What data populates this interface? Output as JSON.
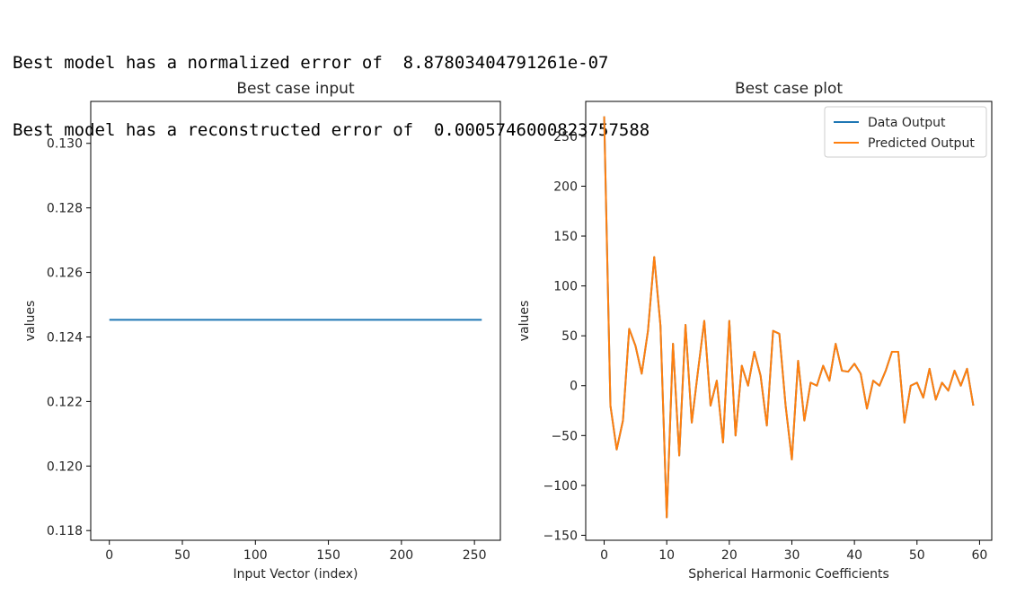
{
  "output": {
    "line1": "Best model has a normalized error of  8.87803404791261e-07",
    "line2": "Best model has a reconstructed error of  0.0005746000823757588"
  },
  "chart_data": [
    {
      "type": "line",
      "title": "Best case input",
      "xlabel": "Input Vector (index)",
      "ylabel": "values",
      "xlim": [
        -12.75,
        267.75
      ],
      "ylim": [
        0.1177,
        0.1313
      ],
      "xticks": [
        0,
        50,
        100,
        150,
        200,
        250
      ],
      "xtick_labels": [
        "0",
        "50",
        "100",
        "150",
        "200",
        "250"
      ],
      "yticks": [
        0.118,
        0.12,
        0.122,
        0.124,
        0.126,
        0.128,
        0.13
      ],
      "ytick_labels": [
        "0.118",
        "0.120",
        "0.122",
        "0.124",
        "0.126",
        "0.128",
        "0.130"
      ],
      "grid": false,
      "series": [
        {
          "color": "#1f77b4",
          "x": [
            0,
            255
          ],
          "y": [
            0.12453,
            0.12453
          ]
        }
      ]
    },
    {
      "type": "line",
      "title": "Best case plot",
      "xlabel": "Spherical Harmonic Coefficients",
      "ylabel": "values",
      "xlim": [
        -2.95,
        61.95
      ],
      "ylim": [
        -155,
        285
      ],
      "xticks": [
        0,
        10,
        20,
        30,
        40,
        50,
        60
      ],
      "xtick_labels": [
        "0",
        "10",
        "20",
        "30",
        "40",
        "50",
        "60"
      ],
      "yticks": [
        -150,
        -100,
        -50,
        0,
        50,
        100,
        150,
        200,
        250
      ],
      "ytick_labels": [
        "−150",
        "−100",
        "−50",
        "0",
        "50",
        "100",
        "150",
        "200",
        "250"
      ],
      "grid": false,
      "legend": "top-right",
      "series": [
        {
          "name": "Data Output",
          "color": "#1f77b4",
          "y": [
            270,
            -20,
            -64,
            -35,
            57,
            40,
            12,
            55,
            129,
            60,
            -132,
            42,
            -70,
            61,
            -37,
            15,
            65,
            -20,
            5,
            -57,
            65,
            -50,
            20,
            0,
            34,
            10,
            -40,
            55,
            52,
            -20,
            -74,
            25,
            -35,
            3,
            0,
            20,
            5,
            42,
            15,
            14,
            22,
            12,
            -23,
            5,
            0,
            15,
            34,
            34,
            -37,
            0,
            3,
            -12,
            17,
            -14,
            3,
            -5,
            15,
            0,
            17,
            -20
          ]
        },
        {
          "name": "Predicted Output",
          "color": "#ff7f0e",
          "y": [
            270,
            -20,
            -64,
            -35,
            57,
            40,
            12,
            55,
            129,
            60,
            -132,
            42,
            -70,
            61,
            -37,
            15,
            65,
            -20,
            5,
            -57,
            65,
            -50,
            20,
            0,
            34,
            10,
            -40,
            55,
            52,
            -20,
            -74,
            25,
            -35,
            3,
            0,
            20,
            5,
            42,
            15,
            14,
            22,
            12,
            -23,
            5,
            0,
            15,
            34,
            34,
            -37,
            0,
            3,
            -12,
            17,
            -14,
            3,
            -5,
            15,
            0,
            17,
            -20
          ]
        }
      ]
    }
  ]
}
